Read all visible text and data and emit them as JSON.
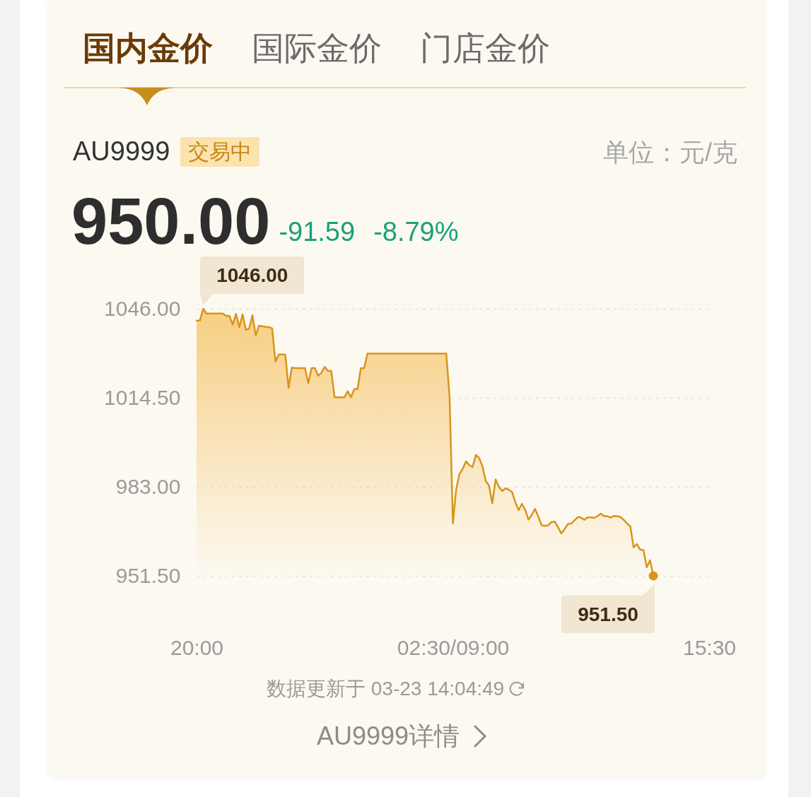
{
  "chart_data": {
    "type": "area",
    "title": "AU9999",
    "annotations": [
      "国内金价",
      "国际金价",
      "门店金价",
      "交易中",
      "单位：元/克",
      "950.00",
      "-91.59",
      "-8.79%",
      "数据更新于 03-23 14:04:49",
      "AU9999详情",
      "1046.00",
      {
        "text": "951.50",
        "y": 951.5
      }
    ],
    "categories": [
      "20:00",
      null,
      null,
      null,
      null,
      null,
      null,
      null,
      null,
      null,
      null,
      null,
      null,
      null,
      null,
      null,
      null,
      null,
      null,
      null,
      null,
      null,
      null,
      null,
      null,
      null,
      null,
      null,
      null,
      null,
      null,
      null,
      null,
      null,
      null,
      null,
      null,
      null,
      null,
      null,
      null,
      null,
      null,
      null,
      null,
      null,
      null,
      null,
      null,
      null,
      null,
      null,
      null,
      null,
      null,
      null,
      null,
      null,
      null,
      null,
      null,
      null,
      null,
      null,
      null,
      null,
      null,
      null,
      null,
      null,
      null,
      null,
      null,
      null,
      null,
      null,
      null,
      null,
      "02:30/09:00",
      null,
      null,
      null,
      null,
      null,
      null,
      null,
      null,
      null,
      null,
      null,
      null,
      null,
      null,
      null,
      null,
      null,
      null,
      null,
      null,
      null,
      null,
      null,
      null,
      null,
      null,
      null,
      null,
      null,
      null,
      null,
      null,
      null,
      null,
      null,
      null,
      null,
      null,
      null,
      null,
      null,
      null,
      null,
      null,
      null,
      null,
      null,
      null,
      null,
      null,
      null,
      null,
      null,
      null,
      null,
      null,
      null,
      null,
      null,
      null,
      null,
      null,
      null,
      null,
      null,
      null,
      null,
      null,
      null,
      null,
      null,
      null,
      null,
      null,
      null,
      null,
      null,
      "15:30"
    ],
    "ylim": [
      951.5,
      1046
    ],
    "yticks": [
      {
        "value": 951.5,
        "label": "951.50"
      },
      {
        "value": 983,
        "label": "983.00"
      },
      {
        "value": 1014.5,
        "label": "1014.50"
      },
      {
        "value": 1046,
        "label": "1046.00"
      }
    ],
    "grid": "y",
    "series": [
      {
        "color": "#d8951c",
        "values": [
          1041.8,
          1041.8,
          1046,
          1044.3,
          1044.3,
          1044.3,
          1044.3,
          1044.3,
          1044.3,
          1043.5,
          1043.5,
          1040.4,
          1044.2,
          1039.5,
          1044,
          1038.6,
          1039,
          1043.7,
          1036.6,
          1040,
          1039.8,
          1039.6,
          1039.5,
          1039.1,
          1027.3,
          1029.8,
          1029.8,
          1029.8,
          1018,
          1025.2,
          1025,
          1025,
          1025,
          1025,
          1019.7,
          1025,
          1025,
          1022.3,
          1023.4,
          1025.4,
          1024,
          1024,
          1014.7,
          1014.7,
          1014.7,
          1014.7,
          1016.8,
          1014.7,
          1017.6,
          1017.6,
          1025,
          1025,
          1030.1,
          1030.1,
          1030.1,
          1030.1,
          1030.1,
          1030.1,
          1030.1,
          1030.1,
          1030.1,
          1030.1,
          1030.1,
          1030.1,
          1030.1,
          1030.1,
          1030.1,
          1030.1,
          1030.1,
          1030.1,
          1030.1,
          1030.1,
          1030.1,
          1030.1,
          1030.1,
          1030.1,
          1030.1,
          1014.7,
          970.1,
          982,
          987.5,
          989.4,
          992,
          990.7,
          990,
          994.3,
          993.2,
          990.3,
          985,
          983.5,
          977.2,
          985.6,
          983,
          981.5,
          982.5,
          982,
          981.2,
          977.6,
          974.7,
          977,
          974.9,
          971.4,
          973,
          975.2,
          972.5,
          969.4,
          969.2,
          969.4,
          970.5,
          970.7,
          968.7,
          966.5,
          968,
          969.8,
          970,
          971.1,
          972.3,
          972.1,
          971.3,
          972.2,
          972.2,
          972,
          972.6,
          973.5,
          972.6,
          972.6,
          972.1,
          972.7,
          972.6,
          972.3,
          971.3,
          970.1,
          969,
          961.6,
          962.8,
          960.8,
          960.6,
          954.5,
          957,
          951.5,
          null,
          null,
          null,
          null,
          null,
          null,
          null,
          null,
          null,
          null,
          null,
          null,
          null,
          null,
          null,
          null,
          null
        ]
      },
      {
        "type": "scatter",
        "color": "#d8951c",
        "marker": "circle",
        "values": [
          null,
          null,
          null,
          null,
          null,
          null,
          null,
          null,
          null,
          null,
          null,
          null,
          null,
          null,
          null,
          null,
          null,
          null,
          null,
          null,
          null,
          null,
          null,
          null,
          null,
          null,
          null,
          null,
          null,
          null,
          null,
          null,
          null,
          null,
          null,
          null,
          null,
          null,
          null,
          null,
          null,
          null,
          null,
          null,
          null,
          null,
          null,
          null,
          null,
          null,
          null,
          null,
          null,
          null,
          null,
          null,
          null,
          null,
          null,
          null,
          null,
          null,
          null,
          null,
          null,
          null,
          null,
          null,
          null,
          null,
          null,
          null,
          null,
          null,
          null,
          null,
          null,
          null,
          null,
          null,
          null,
          null,
          null,
          null,
          null,
          null,
          null,
          null,
          null,
          null,
          null,
          null,
          null,
          null,
          null,
          null,
          null,
          null,
          null,
          null,
          null,
          null,
          null,
          null,
          null,
          null,
          null,
          null,
          null,
          null,
          null,
          null,
          null,
          null,
          null,
          null,
          null,
          null,
          null,
          null,
          null,
          null,
          null,
          null,
          null,
          null,
          null,
          null,
          null,
          null,
          null,
          null,
          null,
          null,
          null,
          null,
          null,
          null,
          null,
          951.5,
          null,
          null,
          null,
          null,
          null,
          null,
          null,
          null,
          null,
          null,
          null,
          null,
          null,
          null,
          null,
          null,
          null
        ]
      }
    ]
  }
}
